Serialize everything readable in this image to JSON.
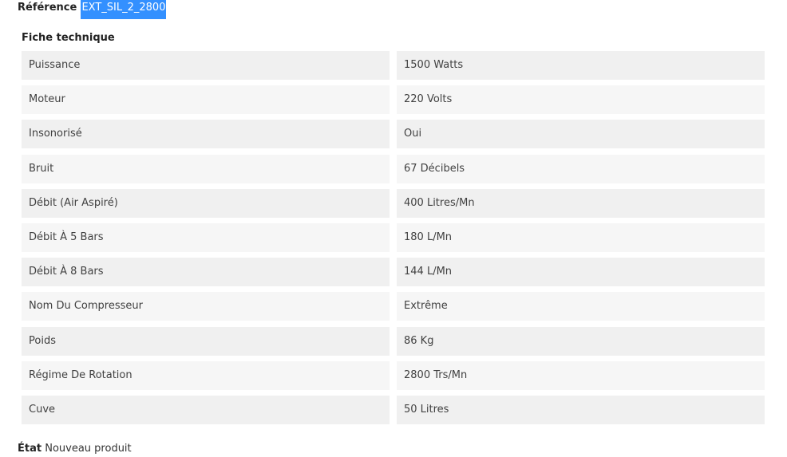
{
  "reference": {
    "label": "Référence",
    "value": "EXT_SIL_2_2800"
  },
  "fiche": {
    "title": "Fiche technique",
    "rows": [
      {
        "name": "Puissance",
        "value": "1500 Watts"
      },
      {
        "name": "Moteur",
        "value": "220 Volts"
      },
      {
        "name": "Insonorisé",
        "value": "Oui"
      },
      {
        "name": "Bruit",
        "value": "67 Décibels"
      },
      {
        "name": "Débit (Air Aspiré)",
        "value": "400 Litres/Mn"
      },
      {
        "name": "Débit À 5 Bars",
        "value": "180 L/Mn"
      },
      {
        "name": "Débit À  8 Bars",
        "value": "144 L/Mn"
      },
      {
        "name": "Nom Du Compresseur",
        "value": "Extrême"
      },
      {
        "name": "Poids",
        "value": "86 Kg"
      },
      {
        "name": "Régime De Rotation",
        "value": "2800 Trs/Mn"
      },
      {
        "name": "Cuve",
        "value": "50 Litres"
      }
    ]
  },
  "etat": {
    "label": "État",
    "value": "Nouveau produit"
  },
  "colors": {
    "selection": "#3390ff",
    "row_odd": "#f0f0f0",
    "row_even": "#f6f6f6"
  }
}
